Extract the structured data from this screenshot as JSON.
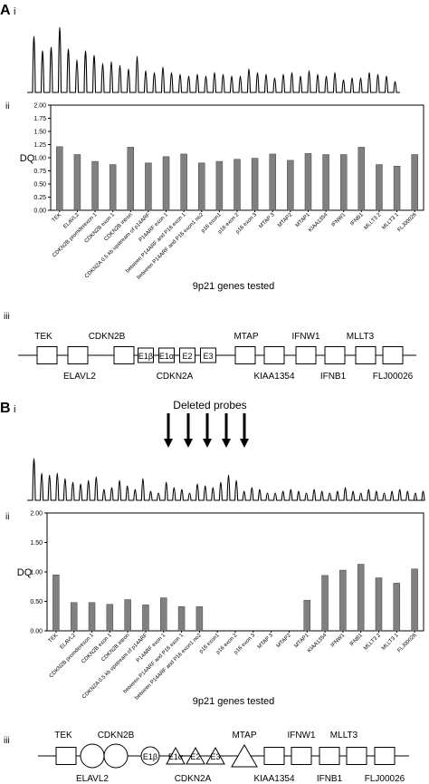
{
  "panel_a": {
    "letter": "A",
    "sub_i": "i",
    "sub_ii": "ii",
    "sub_iii": "iii",
    "xlabel": "9p21 genes tested"
  },
  "panel_b": {
    "letter": "B",
    "sub_i": "i",
    "sub_ii": "ii",
    "sub_iii": "iii",
    "annotation": "Deleted probes",
    "xlabel": "9p21 genes tested"
  },
  "chart_data": [
    {
      "type": "bar",
      "panel": "A ii",
      "ylabel": "DQ",
      "xlabel": "9p21 genes tested",
      "ylim": [
        0,
        2.0
      ],
      "yticks": [
        "0.00",
        "0.25",
        "0.50",
        "0.75",
        "1.00",
        "1.25",
        "1.50",
        "1.75",
        "2.00"
      ],
      "categories": [
        "TEK",
        "ELAVL2",
        "CDKN2B promderexon 1",
        "CDKN2B exon 1",
        "CDKN2B intron",
        "CDKN2A 0.5 kb upstream of p14ARF",
        "P14ARF exon 1",
        "between P14ARF and P16 exon 1",
        "between P14ARF and P16 exon1 no2",
        "p16 exon1",
        "p16 exon 2",
        "p16 exon 3",
        "MTAP 3",
        "MTAP2",
        "MTAP1",
        "KIAA1354",
        "IFNW1",
        "IFNB1",
        "MLLT3 2",
        "MLLT3 1",
        "FLJ00026"
      ],
      "values": [
        1.21,
        1.06,
        0.93,
        0.87,
        1.2,
        0.9,
        1.02,
        1.07,
        0.9,
        0.93,
        0.97,
        0.99,
        1.07,
        0.95,
        1.08,
        1.06,
        1.06,
        1.2,
        0.87,
        0.84,
        1.06
      ],
      "bar_color": "#808080",
      "grid": false
    },
    {
      "type": "bar",
      "panel": "B ii",
      "ylabel": "DQ",
      "xlabel": "9p21 genes tested",
      "ylim": [
        0,
        2.0
      ],
      "yticks": [
        "0.00",
        "0.50",
        "1.00",
        "1.50",
        "2.00"
      ],
      "categories": [
        "TEK",
        "ELAVL2",
        "CDKN2B promderexon 1",
        "CDKN2B exon 1",
        "CDKN2B intron",
        "CDKN2A 0.5 kb upstream of p14ARF",
        "P14ARF exon 1",
        "between P14ARF and P16 exon 1",
        "between P14ARF and P16 exon1 no2",
        "p16 exon1",
        "p16 exon 2",
        "p16 exon 3",
        "MTAP 3",
        "MTAP2",
        "MTAP1",
        "KIAA1354",
        "IFNW1",
        "IFNB1",
        "MLLT3 2",
        "MLLT3 1",
        "FLJ00026"
      ],
      "values": [
        0.95,
        0.48,
        0.48,
        0.45,
        0.53,
        0.44,
        0.56,
        0.41,
        0.41,
        0,
        0,
        0,
        0,
        0,
        0.52,
        0.94,
        1.03,
        1.13,
        0.9,
        0.81,
        1.05
      ],
      "bar_color": "#808080",
      "grid": false
    }
  ],
  "map_a": {
    "genes": [
      {
        "label": "TEK",
        "pos": "top",
        "shape": "box"
      },
      {
        "label": "ELAVL2",
        "pos": "bottom",
        "shape": "box"
      },
      {
        "label": "CDKN2B",
        "pos": "top",
        "shape": "box"
      },
      {
        "label": "E1β",
        "pos": "inside",
        "shape": "box"
      },
      {
        "label": "E1α",
        "pos": "inside",
        "shape": "box"
      },
      {
        "label": "E2",
        "pos": "inside",
        "shape": "box"
      },
      {
        "label": "E3",
        "pos": "inside",
        "shape": "box"
      },
      {
        "label": "MTAP",
        "pos": "top",
        "shape": "box"
      },
      {
        "label": "KIAA1354",
        "pos": "bottom",
        "shape": "box"
      },
      {
        "label": "IFNW1",
        "pos": "top",
        "shape": "box"
      },
      {
        "label": "IFNB1",
        "pos": "bottom",
        "shape": "box"
      },
      {
        "label": "MLLT3",
        "pos": "top",
        "shape": "box"
      },
      {
        "label": "FLJ00026",
        "pos": "bottom",
        "shape": "box"
      }
    ],
    "cdkn2a_label": "CDKN2A"
  },
  "map_b": {
    "genes": [
      {
        "label": "TEK",
        "pos": "top",
        "shape": "box"
      },
      {
        "label": "ELAVL2",
        "pos": "bottom",
        "shape": "circle"
      },
      {
        "label": "CDKN2B",
        "pos": "top",
        "shape": "circle"
      },
      {
        "label": "E1β",
        "pos": "inside",
        "shape": "circle"
      },
      {
        "label": "E1α",
        "pos": "inside",
        "shape": "triangle"
      },
      {
        "label": "E2",
        "pos": "inside",
        "shape": "triangle"
      },
      {
        "label": "E3",
        "pos": "inside",
        "shape": "triangle"
      },
      {
        "label": "MTAP",
        "pos": "top",
        "shape": "triangle"
      },
      {
        "label": "KIAA1354",
        "pos": "bottom",
        "shape": "box"
      },
      {
        "label": "IFNW1",
        "pos": "top",
        "shape": "box"
      },
      {
        "label": "IFNB1",
        "pos": "bottom",
        "shape": "box"
      },
      {
        "label": "MLLT3",
        "pos": "top",
        "shape": "box"
      },
      {
        "label": "FLJ00026",
        "pos": "bottom",
        "shape": "box"
      }
    ],
    "cdkn2a_label": "CDKN2A"
  }
}
